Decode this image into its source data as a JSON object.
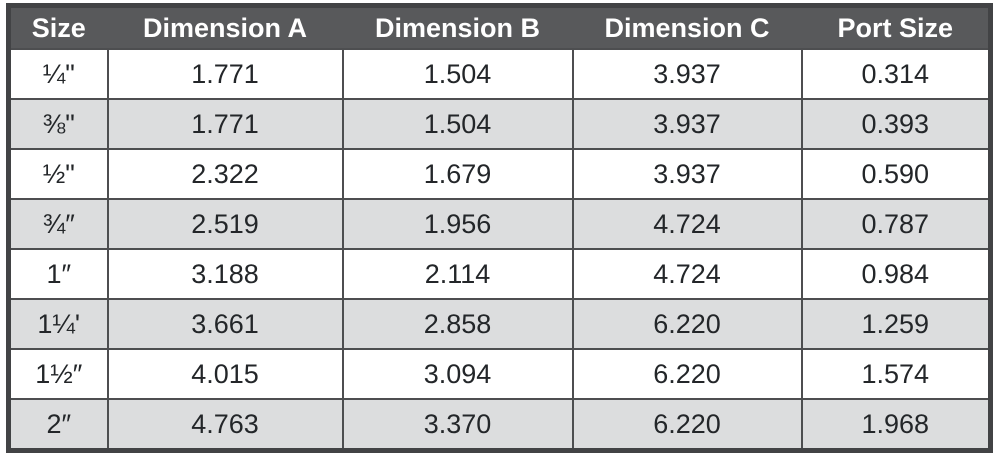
{
  "table": {
    "columns": [
      "Size",
      "Dimension A",
      "Dimension B",
      "Dimension C",
      "Port Size"
    ],
    "rows": [
      {
        "size": "¼\"",
        "dimension_a": "1.771",
        "dimension_b": "1.504",
        "dimension_c": "3.937",
        "port_size": "0.314"
      },
      {
        "size": "⅜\"",
        "dimension_a": "1.771",
        "dimension_b": "1.504",
        "dimension_c": "3.937",
        "port_size": "0.393"
      },
      {
        "size": "½\"",
        "dimension_a": "2.322",
        "dimension_b": "1.679",
        "dimension_c": "3.937",
        "port_size": "0.590"
      },
      {
        "size": "¾″",
        "dimension_a": "2.519",
        "dimension_b": "1.956",
        "dimension_c": "4.724",
        "port_size": "0.787"
      },
      {
        "size": "1″",
        "dimension_a": "3.188",
        "dimension_b": "2.114",
        "dimension_c": "4.724",
        "port_size": "0.984"
      },
      {
        "size": "1¼'",
        "dimension_a": "3.661",
        "dimension_b": "2.858",
        "dimension_c": "6.220",
        "port_size": "1.259"
      },
      {
        "size": "1½″",
        "dimension_a": "4.015",
        "dimension_b": "3.094",
        "dimension_c": "6.220",
        "port_size": "1.574"
      },
      {
        "size": "2″",
        "dimension_a": "4.763",
        "dimension_b": "3.370",
        "dimension_c": "6.220",
        "port_size": "1.968"
      }
    ]
  },
  "colors": {
    "header_bg": "#58595b",
    "header_text": "#ffffff",
    "row_bg": "#ffffff",
    "row_alt_bg": "#dcddde",
    "border": "#4d4e50",
    "outer_border": "#424345",
    "text": "#232629"
  }
}
